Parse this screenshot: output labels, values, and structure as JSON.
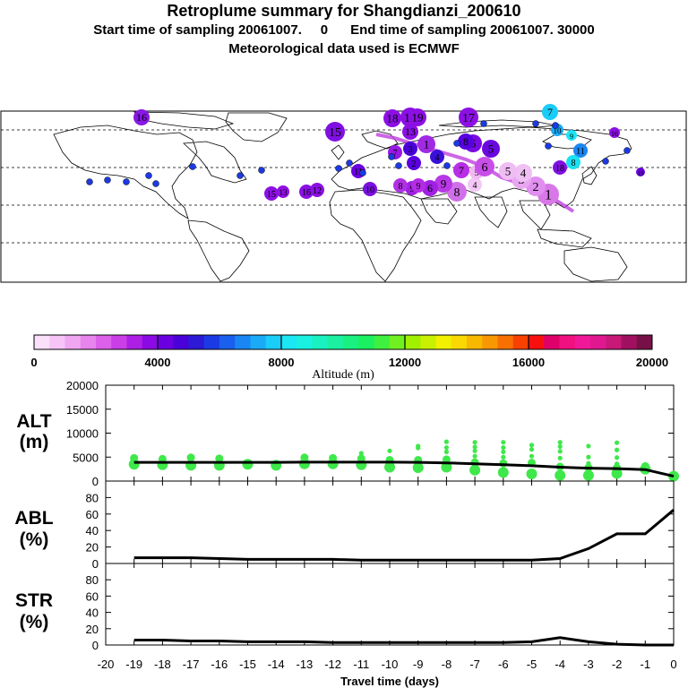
{
  "title": "Retroplume summary for Shangdianzi_200610",
  "subtitle_start_label": "Start time of sampling",
  "subtitle_start_value": "20061007.     0",
  "subtitle_end_label": "End time of sampling",
  "subtitle_end_value": "20061007. 30000",
  "subtitle_met": "Meteorological data used is ECMWF",
  "colorbar": {
    "label": "Altitude (m)",
    "ticks": [
      "0",
      "4000",
      "8000",
      "12000",
      "16000",
      "20000"
    ],
    "colors": [
      "#fbe0fb",
      "#f6c4f6",
      "#f0a6f0",
      "#e884ee",
      "#dc60ea",
      "#c93ee6",
      "#ad1fe4",
      "#8c0ae4",
      "#6a00e0",
      "#4a00d8",
      "#2c1ad6",
      "#1c3ae4",
      "#1a60ee",
      "#1a86f4",
      "#1aaaf8",
      "#1acdf8",
      "#1ae6f4",
      "#1af0e0",
      "#1af0c0",
      "#1af0a0",
      "#1af080",
      "#1af060",
      "#40f040",
      "#70f020",
      "#a0f000",
      "#c8f000",
      "#f0f000",
      "#f8d800",
      "#f8b800",
      "#f89800",
      "#f87000",
      "#f84000",
      "#f81010",
      "#e0006a",
      "#f01080",
      "#f01898",
      "#e01890",
      "#c81878",
      "#a01060",
      "#781048"
    ]
  },
  "chart_data": [
    {
      "type": "scatter",
      "panel": "ALT",
      "ylabel_line1": "ALT",
      "ylabel_line2": "(m)",
      "xlabel": "Travel time (days)",
      "xlim": [
        -20,
        0
      ],
      "ylim": [
        0,
        20000
      ],
      "yticks": [
        "20000",
        "15000",
        "10000",
        "5000",
        "0"
      ],
      "xtick_labels": [
        "-20",
        "-19",
        "-18",
        "-17",
        "-16",
        "-15",
        "-14",
        "-13",
        "-12",
        "-11",
        "-10",
        "-9",
        "-8",
        "-7",
        "-6",
        "-5",
        "-4",
        "-3",
        "-2",
        "-1",
        "0"
      ],
      "mean_line": {
        "x": [
          0,
          -1,
          -2,
          -3,
          -4,
          -5,
          -6,
          -7,
          -8,
          -9,
          -10,
          -11,
          -12,
          -13,
          -14,
          -15,
          -16,
          -17,
          -18,
          -19
        ],
        "y": [
          1000,
          2400,
          2600,
          2700,
          2900,
          3200,
          3400,
          3600,
          3800,
          3900,
          3950,
          3950,
          3950,
          3950,
          3900,
          3900,
          3900,
          3900,
          3900,
          3900
        ]
      },
      "points": [
        {
          "x": -19,
          "y": [
            3500,
            4800
          ]
        },
        {
          "x": -18,
          "y": [
            3400,
            4600
          ]
        },
        {
          "x": -17,
          "y": [
            3300,
            4900
          ]
        },
        {
          "x": -16,
          "y": [
            3300,
            4700
          ]
        },
        {
          "x": -15,
          "y": [
            3500
          ]
        },
        {
          "x": -14,
          "y": [
            3300
          ]
        },
        {
          "x": -13,
          "y": [
            3600,
            4900
          ]
        },
        {
          "x": -12,
          "y": [
            3600,
            4800
          ]
        },
        {
          "x": -11,
          "y": [
            3400,
            4700,
            5800
          ]
        },
        {
          "x": -10,
          "y": [
            2900,
            4400,
            6300
          ]
        },
        {
          "x": -9,
          "y": [
            2800,
            4400,
            6900,
            7300
          ]
        },
        {
          "x": -8,
          "y": [
            2900,
            4500,
            6100,
            7000,
            8200
          ]
        },
        {
          "x": -7,
          "y": [
            2300,
            3900,
            5200,
            6300,
            7100,
            8100
          ]
        },
        {
          "x": -6,
          "y": [
            1800,
            3700,
            5000,
            6100,
            7000,
            8100
          ]
        },
        {
          "x": -5,
          "y": [
            1500,
            3800,
            5200,
            6600,
            7500
          ]
        },
        {
          "x": -4,
          "y": [
            1200,
            3000,
            4800,
            6200,
            7200,
            8100
          ]
        },
        {
          "x": -3,
          "y": [
            1200,
            2800,
            3700,
            5000,
            7300
          ]
        },
        {
          "x": -2,
          "y": [
            1600,
            2800,
            3600,
            4900,
            6500,
            8000
          ]
        },
        {
          "x": -1,
          "y": [
            2500,
            3100
          ]
        },
        {
          "x": 0,
          "y": [
            1000
          ]
        }
      ]
    },
    {
      "type": "line",
      "panel": "ABL",
      "ylabel_line1": "ABL",
      "ylabel_line2": "(%)",
      "xlim": [
        -20,
        0
      ],
      "ylim": [
        0,
        100
      ],
      "yticks": [
        "80",
        "60",
        "40",
        "20",
        "0"
      ],
      "x": [
        -19,
        -18,
        -17,
        -16,
        -15,
        -14,
        -13,
        -12,
        -11,
        -10,
        -9,
        -8,
        -7,
        -6,
        -5,
        -4,
        -3,
        -2,
        -1,
        0
      ],
      "y": [
        7,
        7,
        7,
        6,
        5,
        5,
        5,
        5,
        4,
        4,
        4,
        4,
        4,
        4,
        4,
        6,
        18,
        36,
        36,
        65
      ]
    },
    {
      "type": "line",
      "panel": "STR",
      "ylabel_line1": "STR",
      "ylabel_line2": "(%)",
      "xlim": [
        -20,
        0
      ],
      "ylim": [
        0,
        100
      ],
      "yticks": [
        "80",
        "60",
        "40",
        "20",
        "0"
      ],
      "x": [
        -19,
        -18,
        -17,
        -16,
        -15,
        -14,
        -13,
        -12,
        -11,
        -10,
        -9,
        -8,
        -7,
        -6,
        -5,
        -4,
        -3,
        -2,
        -1,
        0
      ],
      "y": [
        6,
        6,
        5,
        5,
        4,
        4,
        4,
        3,
        3,
        3,
        3,
        3,
        3,
        3,
        4,
        9,
        4,
        1,
        0,
        0
      ]
    }
  ],
  "map": {
    "markers": [
      {
        "label": "1",
        "color": "#d878e8"
      },
      {
        "label": "2",
        "color": "#e08ef0"
      },
      {
        "label": "3",
        "color": "#e8a6f0"
      },
      {
        "label": "4",
        "color": "#f0c0f4"
      },
      {
        "label": "5",
        "color": "#f0bcf4"
      },
      {
        "label": "4",
        "color": "#f4c8f6"
      },
      {
        "label": "5",
        "color": "#f0b8f2"
      },
      {
        "label": "6",
        "color": "#c84ee8"
      },
      {
        "label": "7",
        "color": "#b82ee6"
      },
      {
        "label": "8",
        "color": "#d070e8"
      },
      {
        "label": "9",
        "color": "#b838e6"
      },
      {
        "label": "6",
        "color": "#a020e4"
      },
      {
        "label": "9",
        "color": "#a01ee4"
      },
      {
        "label": "8",
        "color": "#b030e4"
      },
      {
        "label": "7",
        "color": "#9818e4"
      },
      {
        "label": "1",
        "color": "#a02ae4"
      },
      {
        "label": "2",
        "color": "#5a00e0"
      },
      {
        "label": "3",
        "color": "#4a00d8"
      },
      {
        "label": "4",
        "color": "#3a10d8"
      },
      {
        "label": "5",
        "color": "#6a08e0"
      },
      {
        "label": "6",
        "color": "#7a0ae2"
      },
      {
        "label": "8",
        "color": "#5800e0"
      },
      {
        "label": "9",
        "color": "#b42ce6"
      },
      {
        "label": "10",
        "color": "#7a10e0"
      },
      {
        "label": "11",
        "color": "#6a00e0"
      },
      {
        "label": "12",
        "color": "#8c10e4"
      },
      {
        "label": "13",
        "color": "#8a10e4"
      },
      {
        "label": "14",
        "color": "#8c10e4"
      },
      {
        "label": "15",
        "color": "#8010e2"
      },
      {
        "label": "16",
        "color": "#8818e4"
      },
      {
        "label": "17",
        "color": "#8c10e4"
      },
      {
        "label": "18",
        "color": "#8c10e4"
      },
      {
        "label": "19",
        "color": "#8c10e4"
      },
      {
        "label": "7",
        "color": "#1acdf8"
      },
      {
        "label": "9",
        "color": "#1ae6f4"
      },
      {
        "label": "10",
        "color": "#1aaaf8"
      },
      {
        "label": "11",
        "color": "#1a86f4"
      },
      {
        "label": "8",
        "color": "#1ae0f0"
      },
      {
        "label": "16",
        "color": "#8c10e4"
      },
      {
        "label": "15",
        "color": "#8c10e4"
      },
      {
        "label": "13",
        "color": "#9010e4"
      },
      {
        "label": "16",
        "color": "#8a10e4"
      },
      {
        "label": "18",
        "color": "#8010e2"
      },
      {
        "label": "19",
        "color": "#6a00e0"
      }
    ]
  }
}
